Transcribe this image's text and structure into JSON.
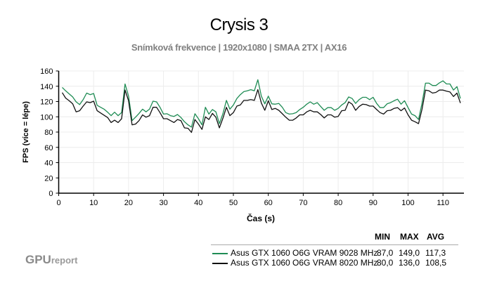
{
  "chart_data": {
    "type": "line",
    "title": "Crysis 3",
    "subtitle": "Snímková frekvence | 1920x1080 | SMAA 2TX | AX16",
    "xlabel": "Čas (s)",
    "ylabel": "FPS (více = lépe)",
    "xlim": [
      0,
      116
    ],
    "ylim": [
      0,
      160
    ],
    "xticks": [
      0,
      10,
      20,
      30,
      40,
      50,
      60,
      70,
      80,
      90,
      100,
      110
    ],
    "yticks": [
      0,
      20,
      40,
      60,
      80,
      100,
      120,
      140,
      160
    ],
    "grid": true,
    "x_start": 1,
    "series": [
      {
        "name": "Asus GTX 1060 O6G VRAM 9028 MHz",
        "color": "#1f8c54",
        "min": "87,0",
        "max": "149,0",
        "avg": "117,3",
        "values": [
          138.5,
          134,
          130,
          126,
          119.5,
          116,
          122.5,
          131,
          129,
          130.5,
          115,
          112.5,
          110,
          106,
          101.5,
          106,
          101.5,
          105.5,
          143,
          127,
          95,
          99.5,
          104.5,
          110,
          106.5,
          110,
          120.5,
          119.5,
          112.5,
          103.5,
          104,
          101.5,
          100.5,
          103,
          99,
          93.5,
          89.5,
          86.5,
          104,
          97.5,
          89.5,
          112.5,
          103.5,
          109.5,
          106.5,
          91,
          104,
          121.5,
          110,
          115.5,
          124,
          129,
          133,
          134,
          135.5,
          134,
          148.5,
          127,
          117,
          127,
          117,
          116.5,
          117.5,
          112.5,
          105.5,
          103.5,
          104,
          105.5,
          109.5,
          112.5,
          116.5,
          119.5,
          116.5,
          118.5,
          113.5,
          108.5,
          112,
          112,
          108.5,
          111,
          115.5,
          118.5,
          126,
          124,
          117.5,
          122.5,
          125.5,
          125.5,
          122.5,
          125.5,
          117.5,
          112,
          112,
          117,
          118.5,
          121,
          123,
          116.5,
          121,
          112,
          103.5,
          101.5,
          96.5,
          118,
          144,
          144,
          141,
          141,
          144.5,
          147,
          143,
          143,
          135,
          139.5,
          124
        ]
      },
      {
        "name": "Asus GTX 1060 O6G VRAM 8020 MHz",
        "color": "#111111",
        "min": "80,0",
        "max": "136,0",
        "avg": "108,5",
        "values": [
          131.7,
          124.5,
          121,
          117,
          106.5,
          108,
          114,
          119.5,
          118.5,
          120.5,
          108,
          105,
          102,
          99,
          92.5,
          95.5,
          92.5,
          97.5,
          135,
          121,
          89.5,
          90.5,
          95,
          102.5,
          99.5,
          101.5,
          112.5,
          112.5,
          105.5,
          97.5,
          97.5,
          95,
          92.5,
          96.5,
          95,
          85.5,
          85,
          79.5,
          96.5,
          90.5,
          83.5,
          100,
          96.5,
          104.5,
          99.5,
          85.5,
          98,
          112.5,
          101.5,
          105.5,
          114,
          115.5,
          121.5,
          121.5,
          122.5,
          121.5,
          135.5,
          118,
          108.5,
          121,
          109.5,
          111,
          108.5,
          104,
          99.5,
          95.5,
          95.5,
          98.5,
          102.5,
          102.5,
          106.5,
          108.5,
          106.5,
          106.5,
          103,
          98.5,
          102.5,
          102.5,
          99.5,
          100.5,
          108,
          108.5,
          119.5,
          116.5,
          108.5,
          113.5,
          116.5,
          116,
          114,
          114,
          109.5,
          105.5,
          103.5,
          108,
          108.5,
          111,
          112,
          108,
          111.5,
          102.5,
          95.5,
          93.5,
          91,
          110,
          135,
          134,
          131,
          132,
          135,
          135,
          133.5,
          132.5,
          126.5,
          131,
          118
        ]
      }
    ]
  },
  "legend": {
    "headers": [
      "MIN",
      "MAX",
      "AVG"
    ]
  },
  "logo": {
    "main": "GPU",
    "suffix": "report"
  }
}
